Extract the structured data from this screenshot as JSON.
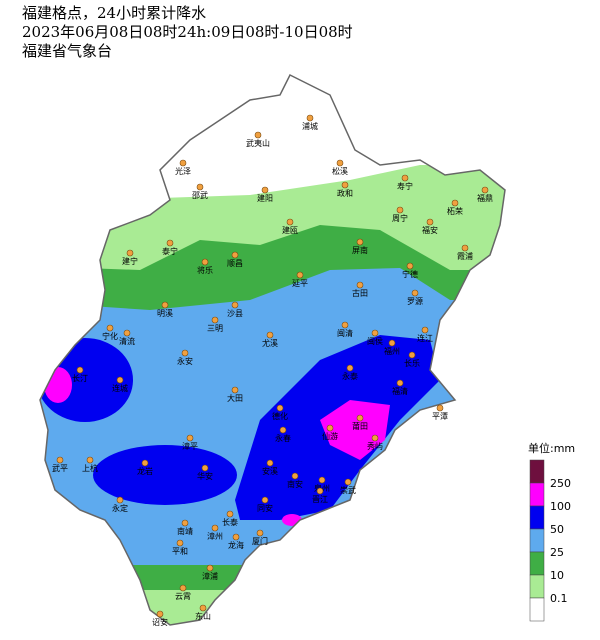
{
  "title_lines": [
    "福建格点，24小时累计降水",
    "2023年06月08日08时24h:09日08时-10日08时",
    "福建省气象台"
  ],
  "legend": {
    "unit": "单位:mm",
    "below_color": "#ffffff",
    "levels": [
      {
        "value": 250,
        "color": "#6e0f3e"
      },
      {
        "value": 100,
        "color": "#ff00ff"
      },
      {
        "value": 50,
        "color": "#0000f0"
      },
      {
        "value": 25,
        "color": "#5eaaee"
      },
      {
        "value": 10,
        "color": "#3fae45"
      },
      {
        "value": 0.1,
        "color": "#a9eb94"
      }
    ]
  },
  "cities": [
    "浦城",
    "武夷山",
    "光泽",
    "松溪",
    "政和",
    "邵武",
    "建阳",
    "寿宁",
    "福鼎",
    "柘荣",
    "周宁",
    "福安",
    "霞浦",
    "建瓯",
    "建宁",
    "泰宁",
    "将乐",
    "顺昌",
    "屏南",
    "宁德",
    "延平",
    "古田",
    "罗源",
    "明溪",
    "沙县",
    "三明",
    "闽清",
    "连江",
    "宁化",
    "清流",
    "尤溪",
    "闽侯",
    "福州",
    "长乐",
    "永安",
    "永泰",
    "福清",
    "长汀",
    "连城",
    "大田",
    "莆田",
    "平潭",
    "仙游",
    "秀屿",
    "德化",
    "永春",
    "漳平",
    "武平",
    "上杭",
    "龙岩",
    "安溪",
    "南安",
    "泉州",
    "华安",
    "崇武",
    "晋江",
    "同安",
    "永定",
    "长泰",
    "南靖",
    "厦门",
    "漳州",
    "龙海",
    "平和",
    "漳浦",
    "云霄",
    "东山",
    "诏安"
  ]
}
